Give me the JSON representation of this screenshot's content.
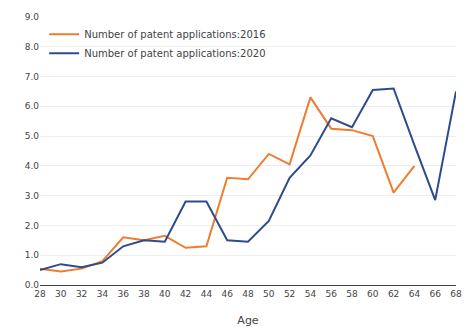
{
  "chart_data": {
    "type": "line",
    "x_label": "Age",
    "x": [
      28,
      30,
      32,
      34,
      36,
      38,
      40,
      42,
      44,
      46,
      48,
      50,
      52,
      54,
      56,
      58,
      60,
      62,
      64,
      66,
      68
    ],
    "series": [
      {
        "name": "Number of patent applications:2016",
        "color": "#ED7D31",
        "values": [
          0.55,
          0.45,
          0.55,
          0.8,
          1.6,
          1.5,
          1.65,
          1.25,
          1.3,
          3.6,
          3.55,
          4.4,
          4.05,
          6.3,
          5.25,
          5.2,
          5.0,
          3.1,
          4.0,
          null,
          null
        ]
      },
      {
        "name": "Number of patent applications:2020",
        "color": "#2E4B8C",
        "values": [
          0.5,
          0.7,
          0.6,
          0.75,
          1.3,
          1.5,
          1.45,
          2.8,
          2.8,
          1.5,
          1.45,
          2.15,
          3.6,
          4.35,
          5.6,
          5.3,
          6.55,
          6.6,
          4.7,
          2.85,
          6.5
        ]
      }
    ],
    "xlim": [
      28,
      68
    ],
    "xticks": [
      28,
      30,
      32,
      34,
      36,
      38,
      40,
      42,
      44,
      46,
      48,
      50,
      52,
      54,
      56,
      58,
      60,
      62,
      64,
      66,
      68
    ],
    "ylim": [
      0.0,
      9.0
    ],
    "yticks": [
      {
        "value": 0.0,
        "label": "0.0"
      },
      {
        "value": 1.0,
        "label": "1.0"
      },
      {
        "value": 2.0,
        "label": "2.0"
      },
      {
        "value": 3.0,
        "label": "3.0"
      },
      {
        "value": 4.0,
        "label": "4.0"
      },
      {
        "value": 5.0,
        "label": "5.0"
      },
      {
        "value": 6.0,
        "label": "6.0"
      },
      {
        "value": 7.0,
        "label": "7.0"
      },
      {
        "value": 8.0,
        "label": "8.0"
      },
      {
        "value": 9.0,
        "label": "9.0"
      }
    ],
    "grid": true,
    "legend": "upper left"
  }
}
